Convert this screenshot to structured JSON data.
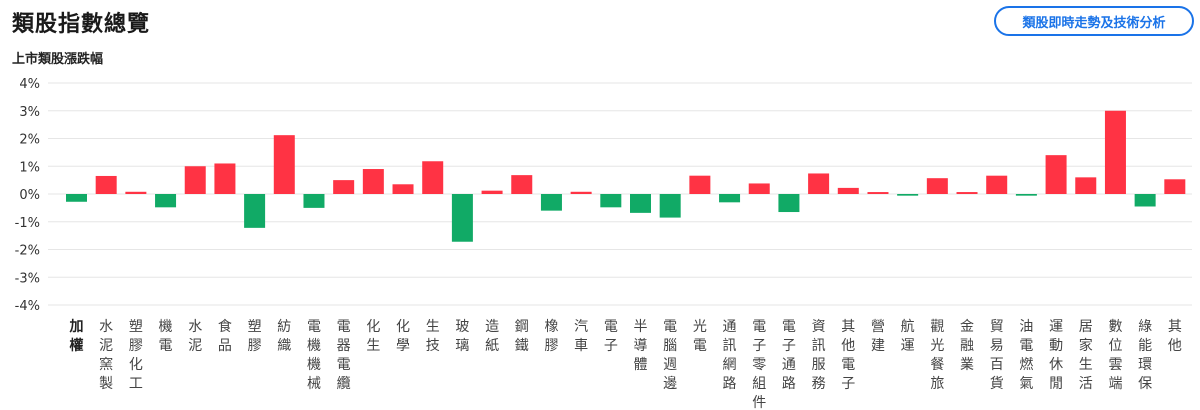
{
  "header": {
    "title": "類股指數總覽",
    "action_button": "類股即時走勢及技術分析"
  },
  "chart_data": {
    "type": "bar",
    "title": "上市類股漲跌幅",
    "ylim": [
      -4,
      4
    ],
    "yticks": [
      "4%",
      "3%",
      "2%",
      "1%",
      "0%",
      "-1%",
      "-2%",
      "-3%",
      "-4%"
    ],
    "grid": true,
    "colors": {
      "up": "#ff3344",
      "down": "#11aa66"
    },
    "categories": [
      "加權",
      "水泥窯製",
      "塑膠化工",
      "機電",
      "水泥",
      "食品",
      "塑膠",
      "紡織",
      "電機機械",
      "電器電纜",
      "化生",
      "化學",
      "生技",
      "玻璃",
      "造紙",
      "鋼鐵",
      "橡膠",
      "汽車",
      "電子",
      "半導體",
      "電腦週邊",
      "光電",
      "通訊網路",
      "電子零組件",
      "電子通路",
      "資訊服務",
      "其他電子",
      "營建",
      "航運",
      "觀光餐旅",
      "金融業",
      "貿易百貨",
      "油電燃氣",
      "運動休閒",
      "居家生活",
      "數位雲端",
      "綠能環保",
      "其他"
    ],
    "values": [
      -0.28,
      0.65,
      0.08,
      -0.48,
      1.0,
      1.1,
      -1.22,
      2.12,
      -0.5,
      0.5,
      0.9,
      0.35,
      1.18,
      -1.72,
      0.12,
      0.68,
      -0.6,
      0.08,
      -0.48,
      -0.68,
      -0.85,
      0.66,
      -0.3,
      0.38,
      -0.65,
      0.74,
      0.22,
      0.07,
      -0.06,
      0.57,
      0.07,
      0.66,
      -0.06,
      1.4,
      0.6,
      3.0,
      -0.45,
      0.53
    ]
  }
}
